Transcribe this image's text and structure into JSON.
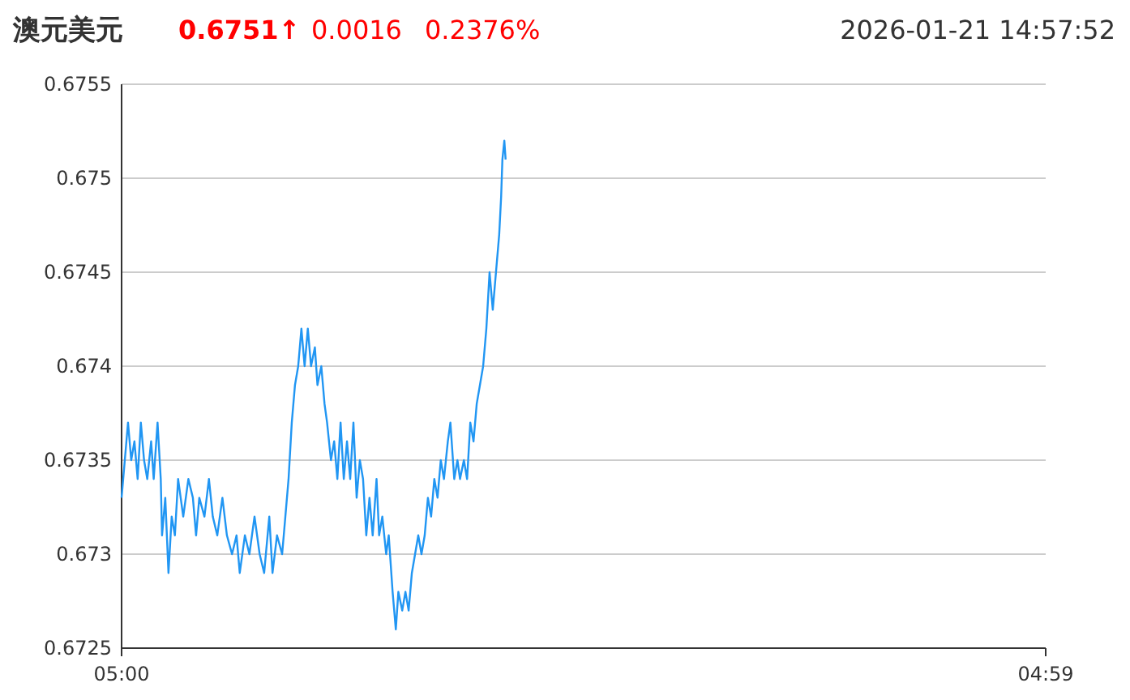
{
  "chart_data": {
    "type": "line",
    "title": "澳元美元",
    "annotations": [
      "0.6751↑",
      "0.0016",
      "0.2376%",
      "2026-01-21 14:57:52"
    ],
    "x": [
      "2026-01-21T05:00",
      "2026-01-21T05:05",
      "2026-01-21T05:10",
      "2026-01-21T05:15",
      "2026-01-21T05:20",
      "2026-01-21T05:25",
      "2026-01-21T05:30",
      "2026-01-21T05:35",
      "2026-01-21T05:40",
      "2026-01-21T05:46",
      "2026-01-21T05:50",
      "2026-01-21T05:56",
      "2026-01-21T06:01",
      "2026-01-21T06:03",
      "2026-01-21T06:08",
      "2026-01-21T06:13",
      "2026-01-21T06:18",
      "2026-01-21T06:23",
      "2026-01-21T06:28",
      "2026-01-21T06:36",
      "2026-01-21T06:44",
      "2026-01-21T06:51",
      "2026-01-21T06:56",
      "2026-01-21T07:01",
      "2026-01-21T07:09",
      "2026-01-21T07:16",
      "2026-01-21T07:22",
      "2026-01-21T07:29",
      "2026-01-21T07:37",
      "2026-01-21T07:44",
      "2026-01-21T07:52",
      "2026-01-21T07:59",
      "2026-01-21T08:04",
      "2026-01-21T08:12",
      "2026-01-21T08:19",
      "2026-01-21T08:27",
      "2026-01-21T08:35",
      "2026-01-21T08:42",
      "2026-01-21T08:50",
      "2026-01-21T08:55",
      "2026-01-21T09:02",
      "2026-01-21T09:10",
      "2026-01-21T09:15",
      "2026-01-21T09:20",
      "2026-01-21T09:25",
      "2026-01-21T09:30",
      "2026-01-21T09:35",
      "2026-01-21T09:40",
      "2026-01-21T09:45",
      "2026-01-21T09:50",
      "2026-01-21T09:55",
      "2026-01-21T10:01",
      "2026-01-21T10:05",
      "2026-01-21T10:11",
      "2026-01-21T10:16",
      "2026-01-21T10:20",
      "2026-01-21T10:26",
      "2026-01-21T10:31",
      "2026-01-21T10:36",
      "2026-01-21T10:41",
      "2026-01-21T10:46",
      "2026-01-21T10:51",
      "2026-01-21T10:56",
      "2026-01-21T11:01",
      "2026-01-21T11:06",
      "2026-01-21T11:11",
      "2026-01-21T11:16",
      "2026-01-21T11:21",
      "2026-01-21T11:26",
      "2026-01-21T11:31",
      "2026-01-21T11:37",
      "2026-01-21T11:41",
      "2026-01-21T11:46",
      "2026-01-21T11:52",
      "2026-01-21T11:56",
      "2026-01-21T12:02",
      "2026-01-21T12:07",
      "2026-01-21T12:11",
      "2026-01-21T12:17",
      "2026-01-21T12:22",
      "2026-01-21T12:27",
      "2026-01-21T12:32",
      "2026-01-21T12:37",
      "2026-01-21T12:42",
      "2026-01-21T12:47",
      "2026-01-21T12:52",
      "2026-01-21T12:57",
      "2026-01-21T13:02",
      "2026-01-21T13:07",
      "2026-01-21T13:12",
      "2026-01-21T13:17",
      "2026-01-21T13:22",
      "2026-01-21T13:28",
      "2026-01-21T13:32",
      "2026-01-21T13:38",
      "2026-01-21T13:43",
      "2026-01-21T13:47",
      "2026-01-21T13:53",
      "2026-01-21T13:58",
      "2026-01-21T14:03",
      "2026-01-21T14:08",
      "2026-01-21T14:13",
      "2026-01-21T14:18",
      "2026-01-21T14:23",
      "2026-01-21T14:28",
      "2026-01-21T14:33",
      "2026-01-21T14:38",
      "2026-01-21T14:43",
      "2026-01-21T14:48",
      "2026-01-21T14:51",
      "2026-01-21T14:53",
      "2026-01-21T14:56",
      "2026-01-21T14:58"
    ],
    "series": [
      {
        "color": "#2196f3",
        "values": [
          0.6733,
          0.6735,
          0.6737,
          0.6735,
          0.6736,
          0.6734,
          0.6737,
          0.6735,
          0.6734,
          0.6736,
          0.6734,
          0.6737,
          0.6734,
          0.6731,
          0.6733,
          0.6729,
          0.6732,
          0.6731,
          0.6734,
          0.6732,
          0.6734,
          0.6733,
          0.6731,
          0.6733,
          0.6732,
          0.6734,
          0.6732,
          0.6731,
          0.6733,
          0.6731,
          0.673,
          0.6731,
          0.6729,
          0.6731,
          0.673,
          0.6732,
          0.673,
          0.6729,
          0.6732,
          0.6729,
          0.6731,
          0.673,
          0.6732,
          0.6734,
          0.6737,
          0.6739,
          0.674,
          0.6742,
          0.674,
          0.6742,
          0.674,
          0.6741,
          0.6739,
          0.674,
          0.6738,
          0.6737,
          0.6735,
          0.6736,
          0.6734,
          0.6737,
          0.6734,
          0.6736,
          0.6734,
          0.6737,
          0.6733,
          0.6735,
          0.6734,
          0.6731,
          0.6733,
          0.6731,
          0.6734,
          0.6731,
          0.6732,
          0.673,
          0.6731,
          0.6728,
          0.6726,
          0.6728,
          0.6727,
          0.6728,
          0.6727,
          0.6729,
          0.673,
          0.6731,
          0.673,
          0.6731,
          0.6733,
          0.6732,
          0.6734,
          0.6733,
          0.6735,
          0.6734,
          0.6736,
          0.6737,
          0.6734,
          0.6735,
          0.6734,
          0.6735,
          0.6734,
          0.6737,
          0.6736,
          0.6738,
          0.6739,
          0.674,
          0.6742,
          0.6745,
          0.6743,
          0.6745,
          0.6747,
          0.6749,
          0.6751,
          0.6752,
          0.6751
        ]
      }
    ],
    "xlim": [
      "2026-01-21T05:00",
      "2026-01-22T04:59"
    ],
    "xticks": [
      {
        "value": "2026-01-21T05:00",
        "label": "05:00"
      },
      {
        "value": "2026-01-22T04:59",
        "label": "04:59"
      }
    ],
    "ylim": [
      0.6725,
      0.6755
    ],
    "yticks": [
      0.6725,
      0.673,
      0.6735,
      0.674,
      0.6745,
      0.675,
      0.6755
    ],
    "grid": "y",
    "marker": "none",
    "line_style": "solid"
  }
}
